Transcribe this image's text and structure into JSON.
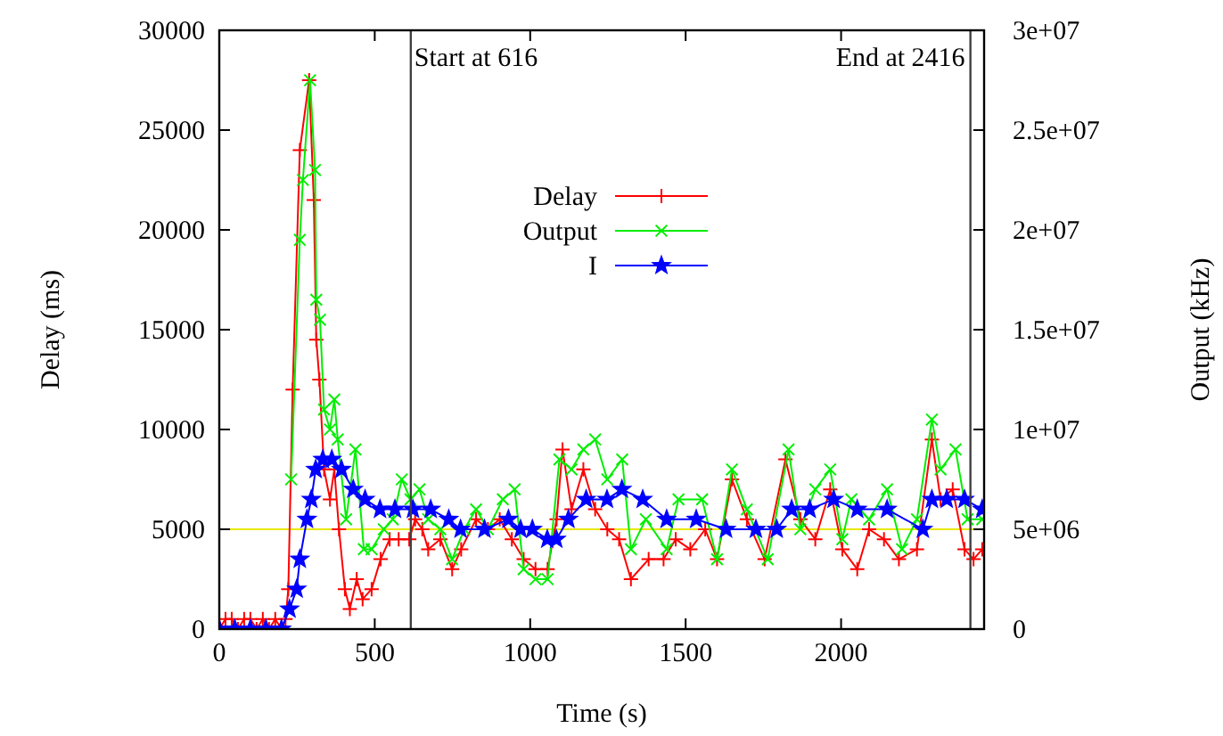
{
  "chart_data": {
    "type": "line",
    "xlabel": "Time (s)",
    "ylabel": "Delay (ms)",
    "y2label": "Output (kHz)",
    "xlim": [
      0,
      2460
    ],
    "xticks": [
      0,
      500,
      1000,
      1500,
      2000
    ],
    "ylim": [
      0,
      30000
    ],
    "yticks": [
      0,
      5000,
      10000,
      15000,
      20000,
      25000,
      30000
    ],
    "y2lim": [
      0,
      30000000
    ],
    "y2ticks": [
      0,
      {
        "value": 5000000,
        "label": "5e+06"
      },
      {
        "value": 10000000,
        "label": "1e+07"
      },
      {
        "value": 15000000,
        "label": "1.5e+07"
      },
      {
        "value": 20000000,
        "label": "2e+07"
      },
      {
        "value": 25000000,
        "label": "2.5e+07"
      },
      {
        "value": 30000000,
        "label": "3e+07"
      }
    ],
    "legend": "top left",
    "line_style": "solid",
    "ref_lines": [
      {
        "axis": "y",
        "value": 5000,
        "label": null,
        "color": "#e8e800"
      },
      {
        "axis": "x",
        "value": 616,
        "label": "Start at 616",
        "color": "#404040"
      },
      {
        "axis": "x",
        "value": 2416,
        "label": "End at 2416",
        "color": "#404040"
      }
    ],
    "series": [
      {
        "name": "Delay",
        "color": "#ff0000",
        "marker": "cross",
        "x": [
          0,
          20,
          40,
          60,
          80,
          100,
          120,
          140,
          160,
          180,
          200,
          213,
          222,
          236,
          259,
          289,
          304,
          312,
          322,
          337,
          356,
          370,
          385,
          404,
          420,
          442,
          461,
          490,
          519,
          548,
          577,
          611,
          630,
          653,
          672,
          711,
          749,
          778,
          826,
          864,
          902,
          941,
          979,
          1017,
          1056,
          1085,
          1104,
          1133,
          1171,
          1209,
          1248,
          1286,
          1324,
          1381,
          1429,
          1468,
          1515,
          1563,
          1601,
          1649,
          1697,
          1754,
          1821,
          1869,
          1917,
          1965,
          2004,
          2052,
          2090,
          2138,
          2186,
          2244,
          2292,
          2320,
          2359,
          2397,
          2426,
          2454
        ],
        "values": [
          0,
          500,
          500,
          0,
          500,
          500,
          0,
          500,
          0,
          500,
          0,
          500,
          2000,
          12000,
          24000,
          27500,
          21500,
          14500,
          12500,
          8000,
          6500,
          8000,
          5000,
          2000,
          1000,
          2500,
          1500,
          2000,
          3500,
          4500,
          4500,
          4500,
          5500,
          5000,
          4000,
          4500,
          3000,
          4000,
          5500,
          5000,
          5500,
          4500,
          3500,
          3000,
          3000,
          5500,
          9000,
          6000,
          8000,
          6000,
          5000,
          4500,
          2500,
          3500,
          3500,
          4500,
          4000,
          5000,
          3500,
          7500,
          5500,
          3500,
          8500,
          5500,
          4500,
          7000,
          4000,
          3000,
          5000,
          4500,
          3500,
          4000,
          9500,
          6500,
          7000,
          4000,
          3500,
          4000
        ]
      },
      {
        "name": "Output",
        "color": "#00ee00",
        "marker": "x",
        "axis": "y2",
        "x": [
          231,
          259,
          269,
          292,
          308,
          312,
          324,
          337,
          356,
          370,
          381,
          408,
          438,
          465,
          490,
          529,
          558,
          587,
          615,
          644,
          672,
          711,
          749,
          788,
          826,
          864,
          912,
          950,
          979,
          1017,
          1056,
          1094,
          1133,
          1171,
          1209,
          1248,
          1296,
          1324,
          1372,
          1439,
          1477,
          1553,
          1601,
          1649,
          1697,
          1764,
          1831,
          1869,
          1917,
          1965,
          2004,
          2033,
          2090,
          2148,
          2196,
          2244,
          2292,
          2320,
          2368,
          2407,
          2454
        ],
        "values": [
          7500000,
          19500000,
          22500000,
          27500000,
          23000000,
          16500000,
          15500000,
          11000000,
          10000000,
          11500000,
          9500000,
          5500000,
          9000000,
          4000000,
          4000000,
          5000000,
          5500000,
          7500000,
          6500000,
          7000000,
          5500000,
          5000000,
          3500000,
          5000000,
          6000000,
          5000000,
          6500000,
          7000000,
          3000000,
          2500000,
          2500000,
          8500000,
          8000000,
          9000000,
          9500000,
          7500000,
          8500000,
          4000000,
          5500000,
          4000000,
          6500000,
          6500000,
          3500000,
          8000000,
          6000000,
          3500000,
          9000000,
          5000000,
          7000000,
          8000000,
          4500000,
          6500000,
          5500000,
          7000000,
          4000000,
          5500000,
          10500000,
          8000000,
          9000000,
          5500000,
          5500000
        ]
      },
      {
        "name": "I",
        "color": "#0000ff",
        "marker": "star",
        "x": [
          0,
          50,
          100,
          150,
          200,
          226,
          249,
          259,
          282,
          296,
          310,
          333,
          362,
          393,
          431,
          469,
          517,
          565,
          623,
          680,
          738,
          776,
          853,
          930,
          969,
          1007,
          1055,
          1084,
          1123,
          1180,
          1247,
          1295,
          1362,
          1439,
          1534,
          1630,
          1726,
          1793,
          1841,
          1899,
          1976,
          2052,
          2148,
          2263,
          2292,
          2340,
          2397,
          2454
        ],
        "values": [
          0,
          0,
          0,
          0,
          0,
          1000,
          2000,
          3500,
          5500,
          6500,
          8000,
          8500,
          8500,
          8000,
          7000,
          6500,
          6000,
          6000,
          6000,
          6000,
          5500,
          5000,
          5000,
          5500,
          5000,
          5000,
          4500,
          4500,
          5500,
          6500,
          6500,
          7000,
          6500,
          5500,
          5500,
          5000,
          5000,
          5000,
          6000,
          6000,
          6500,
          6000,
          6000,
          5000,
          6500,
          6500,
          6500,
          6000
        ]
      }
    ]
  }
}
